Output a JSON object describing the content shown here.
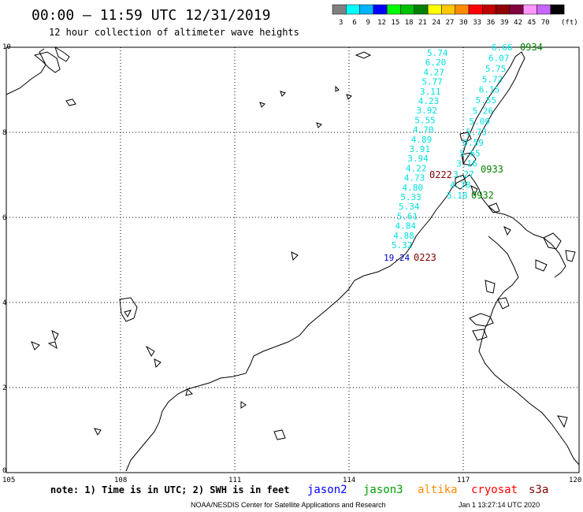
{
  "header": {
    "title": "00:00 – 11:59 UTC 12/31/2019",
    "subtitle": "12 hour collection of altimeter wave heights"
  },
  "legend": {
    "unit": "(ft)",
    "bins": [
      {
        "label": "3",
        "color": "#808080"
      },
      {
        "label": "6",
        "color": "#00ffff"
      },
      {
        "label": "9",
        "color": "#00b4ff"
      },
      {
        "label": "12",
        "color": "#0000ff"
      },
      {
        "label": "15",
        "color": "#00ff00"
      },
      {
        "label": "18",
        "color": "#00c000"
      },
      {
        "label": "21",
        "color": "#008000"
      },
      {
        "label": "24",
        "color": "#ffff00"
      },
      {
        "label": "27",
        "color": "#ffc800"
      },
      {
        "label": "30",
        "color": "#ff8c00"
      },
      {
        "label": "33",
        "color": "#ff0000"
      },
      {
        "label": "36",
        "color": "#c00000"
      },
      {
        "label": "39",
        "color": "#900000"
      },
      {
        "label": "42",
        "color": "#800040"
      },
      {
        "label": "45",
        "color": "#ff96ff"
      },
      {
        "label": "70",
        "color": "#c864ff"
      },
      {
        "label": "",
        "color": "#000000"
      }
    ]
  },
  "axes": {
    "x_ticks": [
      "105",
      "108",
      "111",
      "114",
      "117",
      "120"
    ],
    "y_ticks": [
      "0",
      "2",
      "4",
      "6",
      "8",
      "10"
    ]
  },
  "tracks": [
    {
      "name": "west",
      "color": "#00e0e0",
      "values": [
        "5.74",
        "6.20",
        "4.27",
        "5.77",
        "3.11",
        "4.23",
        "3.92",
        "5.55",
        "4.70",
        "4.89",
        "3.91",
        "3.94",
        "4.22",
        "4.73",
        "4.80",
        "5.33",
        "5.34",
        "5.61",
        "4.84",
        "4.88",
        "5.32"
      ]
    },
    {
      "name": "east",
      "color": "#00e0e0",
      "values": [
        "6.66",
        "6.07",
        "5.75",
        "5.72",
        "6.15",
        "5.55",
        "5.26",
        "5.09",
        "5.73",
        "0.59",
        "5.65",
        "3.16",
        "3.27",
        "4.78",
        "5.18"
      ]
    }
  ],
  "special_values": [
    {
      "text": "19.24",
      "color": "#0000cc"
    }
  ],
  "pass_labels": [
    {
      "text": "0934",
      "color": "#008000"
    },
    {
      "text": "0933",
      "color": "#008000"
    },
    {
      "text": "0932",
      "color": "#008000"
    },
    {
      "text": "0222",
      "color": "#800000"
    },
    {
      "text": "0223",
      "color": "#800000"
    }
  ],
  "footer": {
    "note": "note: 1) Time is in UTC; 2) SWH is in feet",
    "satellites": [
      {
        "name": "jason2",
        "color": "#0000ff"
      },
      {
        "name": "jason3",
        "color": "#00a000"
      },
      {
        "name": "altika",
        "color": "#ff8c00"
      },
      {
        "name": "cryosat",
        "color": "#ff0000"
      },
      {
        "name": "s3a",
        "color": "#800000"
      }
    ],
    "credit": "NOAA/NESDIS Center for Satellite Applications and Research",
    "timestamp": "Jan  1 13:27:14 UTC 2020"
  }
}
